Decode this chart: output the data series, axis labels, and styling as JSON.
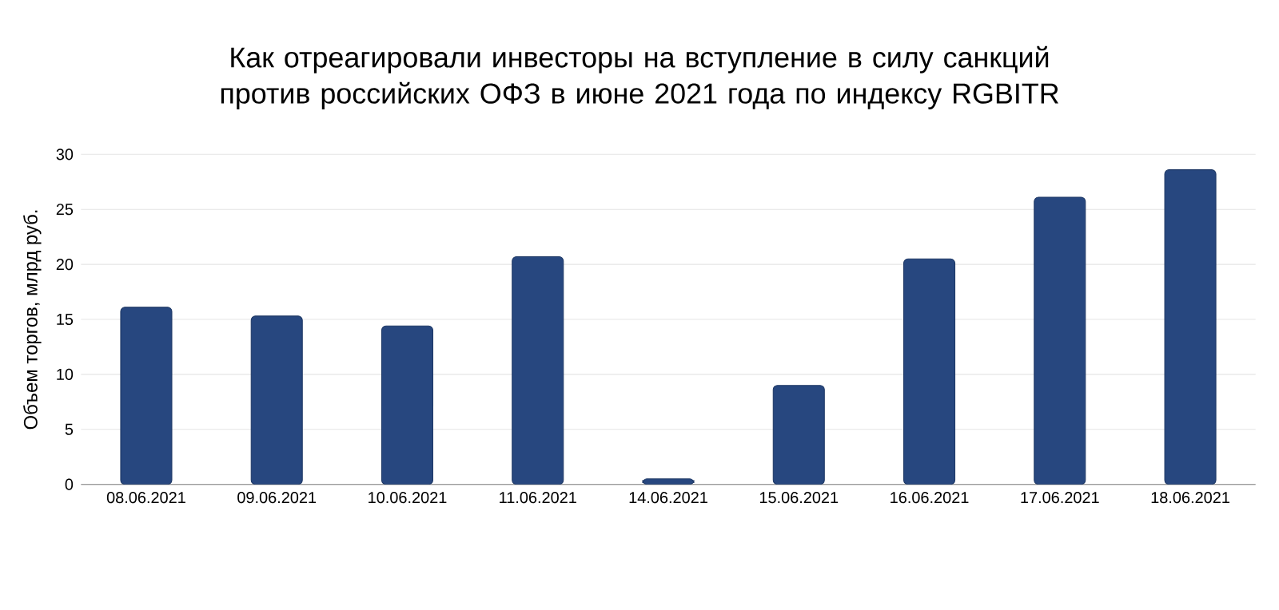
{
  "chart_data": {
    "type": "bar",
    "title": "Как отреагировали инвесторы на вступление в силу санкций против российских ОФЗ в июне 2021 года по индексу RGBITR",
    "ylabel": "Объем торгов, млрд руб.",
    "categories": [
      "08.06.2021",
      "09.06.2021",
      "10.06.2021",
      "11.06.2021",
      "14.06.2021",
      "15.06.2021",
      "16.06.2021",
      "17.06.2021",
      "18.06.2021"
    ],
    "values": [
      16.1,
      15.3,
      14.4,
      20.7,
      0.5,
      9.0,
      20.5,
      26.1,
      28.6
    ],
    "color": "#27477f",
    "ylim": [
      0,
      30
    ],
    "yticks": [
      0,
      5,
      10,
      15,
      20,
      25,
      30
    ],
    "grid": "y"
  }
}
